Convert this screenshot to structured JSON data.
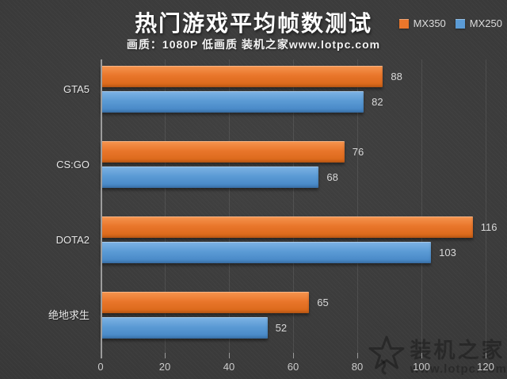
{
  "header": {
    "title": "热门游戏平均帧数测试",
    "subtitle": "画质：1080P 低画质 装机之家www.lotpc.com"
  },
  "legend": [
    {
      "label": "MX350",
      "color": "#e9762b"
    },
    {
      "label": "MX250",
      "color": "#5b9bd5"
    }
  ],
  "chart_data": {
    "type": "bar",
    "orientation": "horizontal",
    "title": "热门游戏平均帧数测试",
    "subtitle": "画质：1080P 低画质 装机之家www.lotpc.com",
    "categories": [
      "GTA5",
      "CS:GO",
      "DOTA2",
      "绝地求生"
    ],
    "series": [
      {
        "name": "MX350",
        "color": "#e9762b",
        "values": [
          88,
          76,
          116,
          65
        ]
      },
      {
        "name": "MX250",
        "color": "#5b9bd5",
        "values": [
          82,
          68,
          103,
          52
        ]
      }
    ],
    "xlim": [
      0,
      120
    ],
    "x_ticks": [
      0,
      20,
      40,
      60,
      80,
      100,
      120
    ],
    "grid": true,
    "legend_position": "top-right",
    "value_labels": true,
    "background": "#3a3a3a"
  },
  "watermark": {
    "brand": "装机之家",
    "url": "www.lotpc.com",
    "icon": "star-logo-icon"
  }
}
